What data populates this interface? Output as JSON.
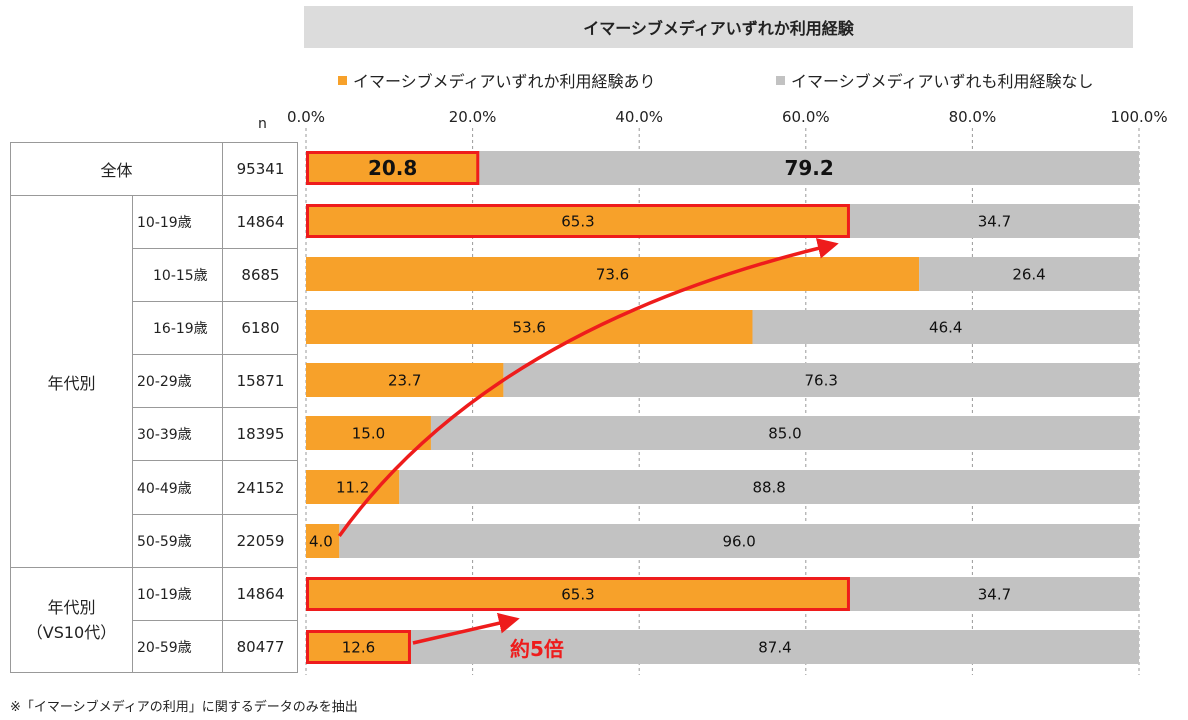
{
  "chart_data": {
    "type": "bar",
    "stacked": true,
    "orientation": "horizontal",
    "title": "イマーシブメディアいずれか利用経験",
    "n_header": "n",
    "xlim": [
      0,
      100
    ],
    "ticks": [
      "0.0%",
      "20.0%",
      "40.0%",
      "60.0%",
      "80.0%",
      "100.0%"
    ],
    "grid": true,
    "legend_position": "top",
    "series": [
      {
        "name": "イマーシブメディアいずれか利用経験あり",
        "color": "#f7a12a",
        "values": [
          20.8,
          65.3,
          73.6,
          53.6,
          23.7,
          15.0,
          11.2,
          4.0,
          65.3,
          12.6
        ],
        "labels": [
          "20.8",
          "65.3",
          "73.6",
          "53.6",
          "23.7",
          "15.0",
          "11.2",
          "4.0",
          "65.3",
          "12.6"
        ]
      },
      {
        "name": "イマーシブメディアいずれも利用経験なし",
        "color": "#c2c2c2",
        "values": [
          79.2,
          34.7,
          26.4,
          46.4,
          76.3,
          85.0,
          88.8,
          96.0,
          34.7,
          87.4
        ],
        "labels": [
          "79.2",
          "34.7",
          "26.4",
          "46.4",
          "76.3",
          "85.0",
          "88.8",
          "96.0",
          "34.7",
          "87.4"
        ]
      }
    ],
    "rows": [
      {
        "group": "全体",
        "category": "",
        "n": "95341"
      },
      {
        "group": "年代別",
        "category": "10-19歳",
        "n": "14864"
      },
      {
        "group": "年代別",
        "category": "10-15歳",
        "n": "8685"
      },
      {
        "group": "年代別",
        "category": "16-19歳",
        "n": "6180"
      },
      {
        "group": "年代別",
        "category": "20-29歳",
        "n": "15871"
      },
      {
        "group": "年代別",
        "category": "30-39歳",
        "n": "18395"
      },
      {
        "group": "年代別",
        "category": "40-49歳",
        "n": "24152"
      },
      {
        "group": "年代別",
        "category": "50-59歳",
        "n": "22059"
      },
      {
        "group": "年代別\n（VS10代）",
        "category": "10-19歳",
        "n": "14864"
      },
      {
        "group": "年代別\n（VS10代）",
        "category": "20-59歳",
        "n": "80477"
      }
    ],
    "groups": [
      {
        "label": "全体",
        "rows": [
          0
        ]
      },
      {
        "label": "年代別",
        "rows": [
          1,
          2,
          3,
          4,
          5,
          6,
          7
        ]
      },
      {
        "label_line1": "年代別",
        "label_line2": "（VS10代）",
        "rows": [
          8,
          9
        ]
      }
    ],
    "highlighted_rows": [
      0,
      1,
      8,
      9
    ],
    "annotations": {
      "ratio_text": "約5倍",
      "arrow_color": "#ee1c1c"
    }
  },
  "legend": {
    "yes_label": "イマーシブメディアいずれか利用経験あり",
    "no_label": "イマーシブメディアいずれも利用経験なし"
  },
  "footnote": "※「イマーシブメディアの利用」に関するデータのみを抽出"
}
